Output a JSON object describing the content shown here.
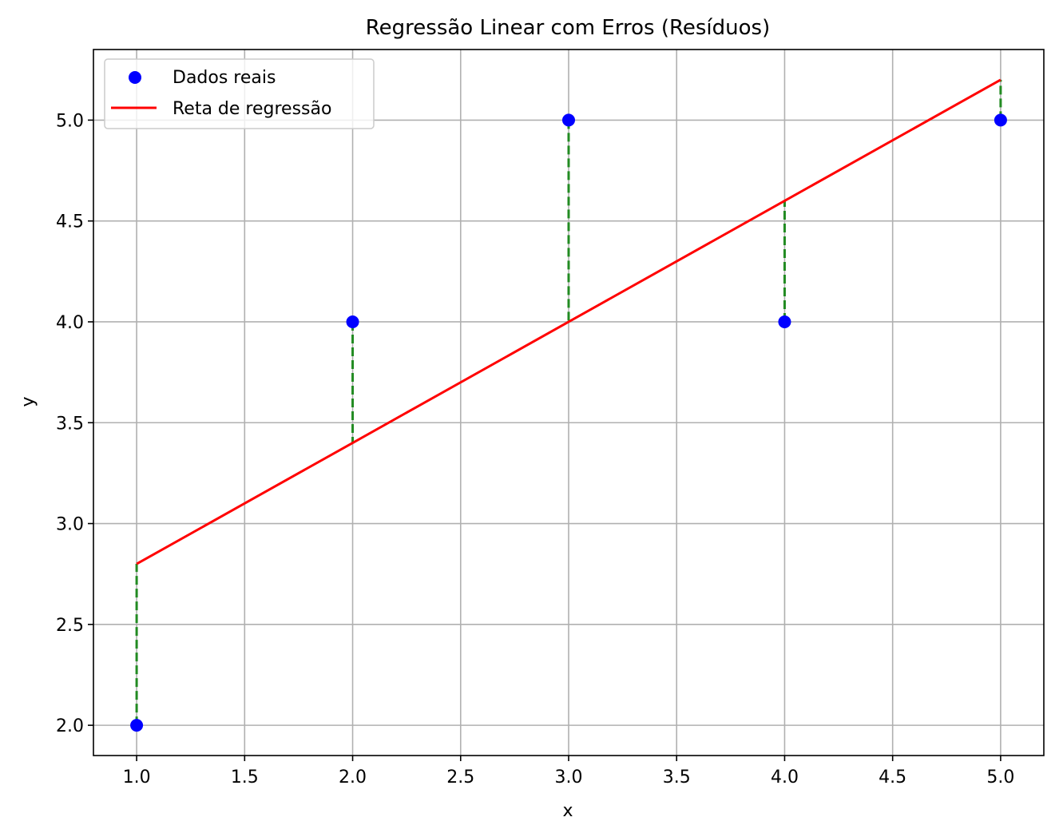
{
  "chart_data": {
    "type": "scatter",
    "title": "Regressão Linear com Erros (Resíduos)",
    "xlabel": "x",
    "ylabel": "y",
    "xlim": [
      0.8,
      5.2
    ],
    "ylim": [
      1.85,
      5.35
    ],
    "xticks": [
      1.0,
      1.5,
      2.0,
      2.5,
      3.0,
      3.5,
      4.0,
      4.5,
      5.0
    ],
    "yticks": [
      2.0,
      2.5,
      3.0,
      3.5,
      4.0,
      4.5,
      5.0
    ],
    "xtick_labels": [
      "1.0",
      "1.5",
      "2.0",
      "2.5",
      "3.0",
      "3.5",
      "4.0",
      "4.5",
      "5.0"
    ],
    "ytick_labels": [
      "2.0",
      "2.5",
      "3.0",
      "3.5",
      "4.0",
      "4.5",
      "5.0"
    ],
    "grid": true,
    "legend_position": "top-left",
    "series": [
      {
        "name": "Dados reais",
        "kind": "scatter",
        "color": "#0000ff",
        "x": [
          1,
          2,
          3,
          4,
          5
        ],
        "y": [
          2,
          4,
          5,
          4,
          5
        ]
      },
      {
        "name": "Reta de regressão",
        "kind": "line",
        "color": "#ff0000",
        "x": [
          1,
          2,
          3,
          4,
          5
        ],
        "y": [
          2.8,
          3.4,
          4.0,
          4.6,
          5.2
        ]
      }
    ],
    "residuals": {
      "style": "dashed",
      "color": "#228b22",
      "x": [
        1,
        2,
        3,
        4,
        5
      ],
      "y_actual": [
        2,
        4,
        5,
        4,
        5
      ],
      "y_predicted": [
        2.8,
        3.4,
        4.0,
        4.6,
        5.2
      ]
    }
  }
}
